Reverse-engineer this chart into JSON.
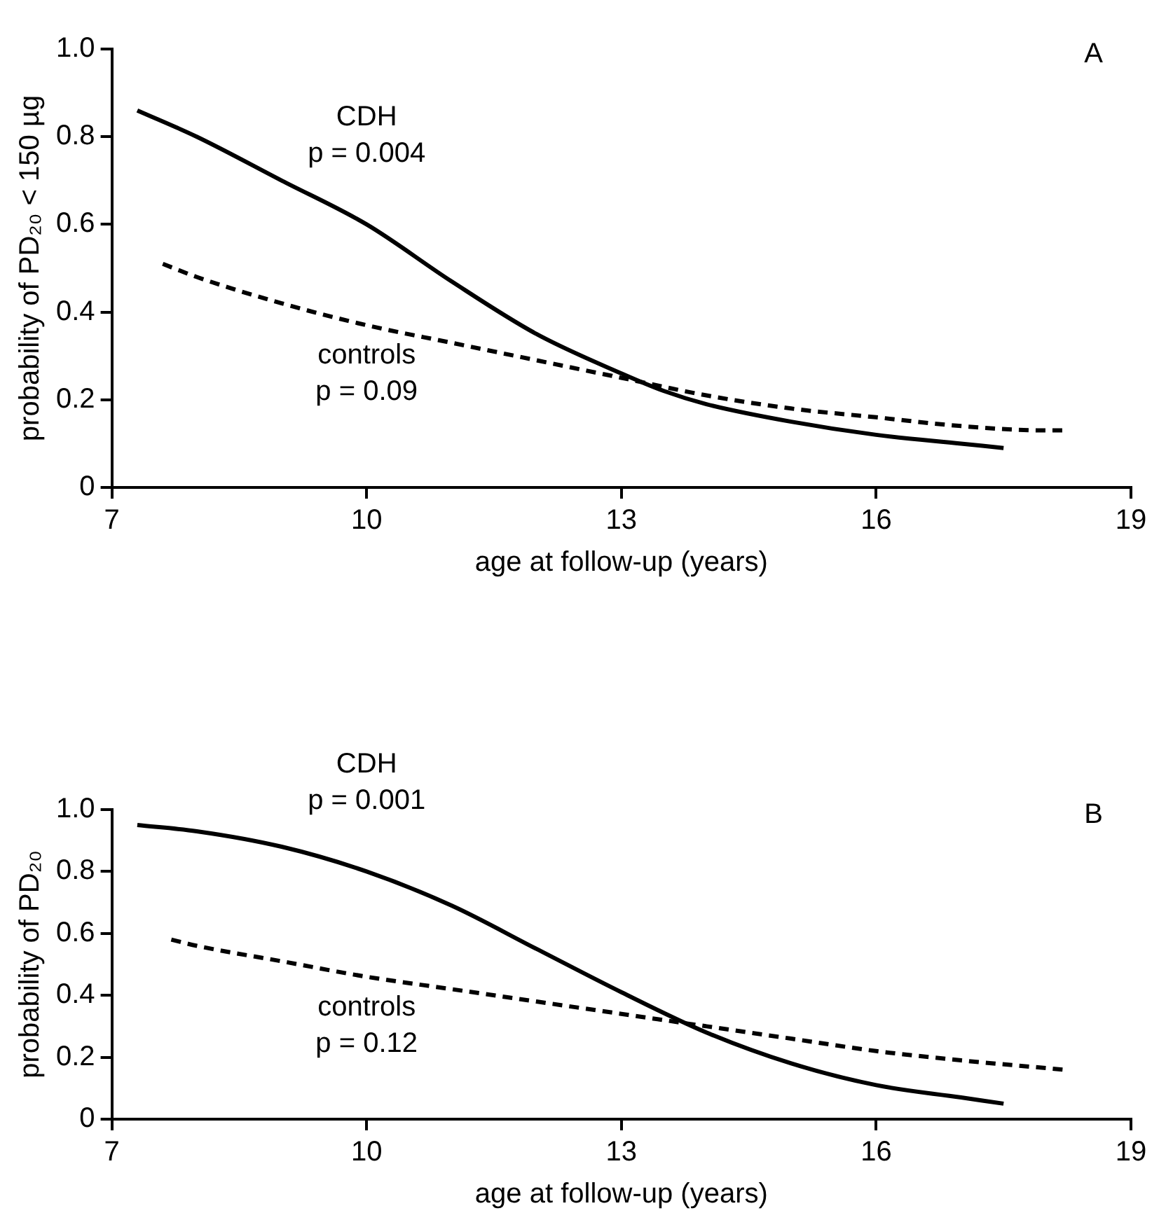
{
  "chart_data": [
    {
      "type": "line",
      "xlabel": "age at follow-up (years)",
      "ylabel": "probability of PD₂₀ < 150 µg",
      "xlim": [
        7,
        19
      ],
      "xticks": [
        7,
        10,
        13,
        16,
        19
      ],
      "ylim": [
        0,
        1
      ],
      "yticks": [
        0,
        {
          "value": 0.2,
          "label": "0.2"
        },
        {
          "value": 0.4,
          "label": "0.4"
        },
        {
          "value": 0.6,
          "label": "0.6"
        },
        {
          "value": 0.8,
          "label": "0.8"
        },
        {
          "value": 1,
          "label": "1.0"
        }
      ],
      "grid": false,
      "legend": false,
      "marker": "none",
      "series": [
        {
          "name": "CDH",
          "color": "#000000",
          "line_style": "solid",
          "x": [
            7.3,
            8,
            9,
            10,
            11,
            12,
            13,
            13.5,
            14,
            15,
            16,
            17,
            17.5
          ],
          "values": [
            0.86,
            0.8,
            0.7,
            0.6,
            0.47,
            0.35,
            0.26,
            0.22,
            0.19,
            0.15,
            0.12,
            0.1,
            0.09
          ]
        },
        {
          "name": "controls",
          "color": "#000000",
          "line_style": "dashed",
          "x": [
            7.6,
            8,
            9,
            10,
            11,
            12,
            13,
            14,
            15,
            16,
            17,
            18,
            18.2
          ],
          "values": [
            0.51,
            0.48,
            0.42,
            0.37,
            0.33,
            0.29,
            0.25,
            0.21,
            0.18,
            0.16,
            0.14,
            0.13,
            0.13
          ]
        }
      ],
      "annotations": [
        "p = 0.004",
        "p = 0.09",
        "A"
      ]
    },
    {
      "type": "line",
      "xlabel": "age at follow-up (years)",
      "ylabel": "probability of PD₂₀",
      "xlim": [
        7,
        19
      ],
      "xticks": [
        7,
        10,
        13,
        16,
        19
      ],
      "ylim": [
        0,
        1
      ],
      "yticks": [
        0,
        {
          "value": 0.2,
          "label": "0.2"
        },
        {
          "value": 0.4,
          "label": "0.4"
        },
        {
          "value": 0.6,
          "label": "0.6"
        },
        {
          "value": 0.8,
          "label": "0.8"
        },
        {
          "value": 1,
          "label": "1.0"
        }
      ],
      "grid": false,
      "legend": false,
      "marker": "none",
      "series": [
        {
          "name": "CDH",
          "color": "#000000",
          "line_style": "solid",
          "x": [
            7.3,
            8,
            9,
            10,
            11,
            12,
            13,
            14,
            15,
            16,
            17,
            17.5
          ],
          "values": [
            0.95,
            0.93,
            0.88,
            0.8,
            0.69,
            0.55,
            0.41,
            0.28,
            0.18,
            0.11,
            0.07,
            0.05
          ]
        },
        {
          "name": "controls",
          "color": "#000000",
          "line_style": "dashed",
          "x": [
            7.7,
            8,
            9,
            10,
            11,
            12,
            13,
            14,
            15,
            16,
            17,
            18.2
          ],
          "values": [
            0.58,
            0.56,
            0.51,
            0.46,
            0.42,
            0.38,
            0.34,
            0.3,
            0.26,
            0.22,
            0.19,
            0.16
          ]
        }
      ],
      "annotations": [
        "p = 0.001",
        "p = 0.12",
        "B"
      ]
    }
  ]
}
